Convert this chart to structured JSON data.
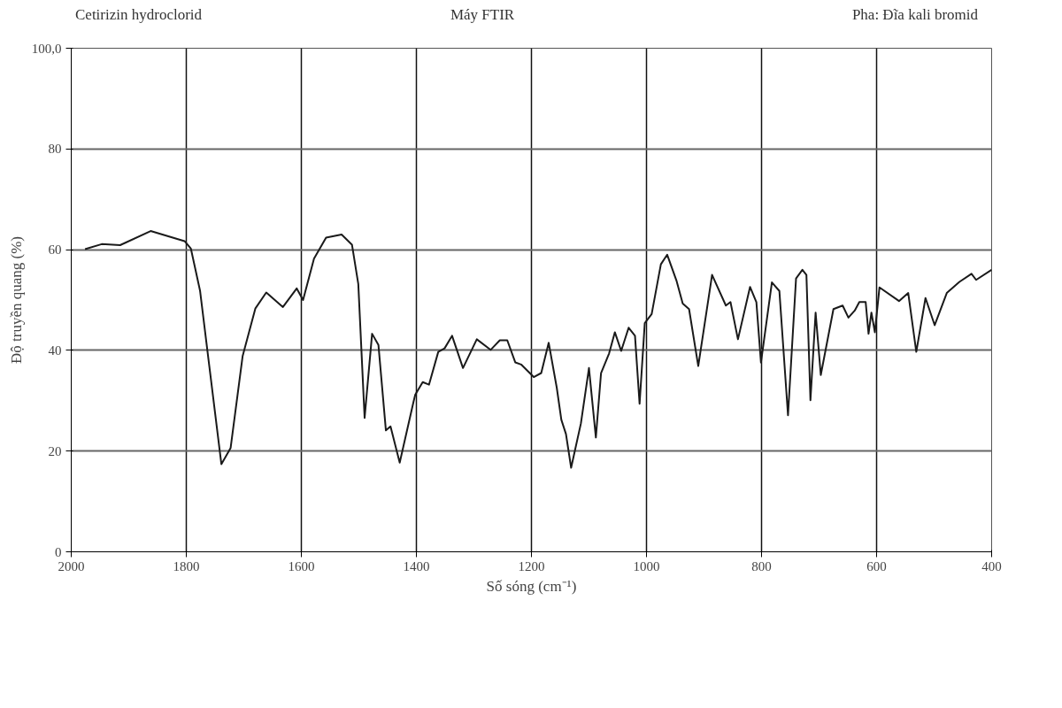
{
  "chart_data": {
    "type": "line",
    "title": "Cetirizin hydroclorid",
    "annotations": [
      "Máy FTIR",
      "Pha: Đĩa kali bromid"
    ],
    "xlabel": "Số sóng (cm⁻¹)",
    "ylabel": "Độ truyền quang (%)",
    "xlim": [
      2000,
      400
    ],
    "xticks": [
      2000,
      1800,
      1600,
      1400,
      1200,
      1000,
      800,
      600,
      400
    ],
    "ylim": [
      0,
      100
    ],
    "yticks": [
      0,
      20,
      40,
      60,
      80,
      {
        "value": 100,
        "label": "100,0"
      }
    ],
    "grid": true,
    "marker": "none",
    "line_style": "solid",
    "series": [
      {
        "color": "#1a1a1a",
        "x": [
          1976,
          1947,
          1915,
          1862,
          1803,
          1792,
          1776,
          1760,
          1739,
          1723,
          1702,
          1680,
          1661,
          1632,
          1608,
          1597,
          1578,
          1557,
          1530,
          1512,
          1501,
          1490,
          1477,
          1466,
          1453,
          1445,
          1429,
          1405,
          1402,
          1389,
          1378,
          1362,
          1351,
          1338,
          1319,
          1295,
          1271,
          1255,
          1242,
          1228,
          1218,
          1196,
          1183,
          1170,
          1156,
          1148,
          1140,
          1131,
          1114,
          1100,
          1088,
          1079,
          1065,
          1055,
          1044,
          1031,
          1020,
          1012,
          1003,
          991,
          975,
          964,
          948,
          937,
          926,
          910,
          886,
          862,
          854,
          841,
          820,
          809,
          801,
          782,
          769,
          754,
          740,
          729,
          722,
          715,
          706,
          697,
          675,
          659,
          649,
          638,
          630,
          619,
          614,
          609,
          603,
          595,
          561,
          545,
          531,
          515,
          499,
          478,
          456,
          435,
          427,
          400
        ],
        "values": [
          60.1,
          61.1,
          60.9,
          63.7,
          61.7,
          60.2,
          51.8,
          36.9,
          17.4,
          20.6,
          38.9,
          48.3,
          51.5,
          48.6,
          52.3,
          50.0,
          58.2,
          62.4,
          63.0,
          61.0,
          53.2,
          26.6,
          43.3,
          41.1,
          24.1,
          24.9,
          17.7,
          29.8,
          31.2,
          33.7,
          33.2,
          39.7,
          40.4,
          42.9,
          36.5,
          42.2,
          40.1,
          42.0,
          42.0,
          37.6,
          37.2,
          34.7,
          35.5,
          41.5,
          32.6,
          26.2,
          23.4,
          16.7,
          25.5,
          36.5,
          22.7,
          35.5,
          39.4,
          43.6,
          39.9,
          44.5,
          42.9,
          29.4,
          45.4,
          47.2,
          57.1,
          59.0,
          53.9,
          49.3,
          48.2,
          36.9,
          55.0,
          48.9,
          49.6,
          42.2,
          52.6,
          49.6,
          37.6,
          53.5,
          51.8,
          27.1,
          54.3,
          56.0,
          55.0,
          30.1,
          47.5,
          35.1,
          48.2,
          48.9,
          46.5,
          47.9,
          49.6,
          49.6,
          43.3,
          47.5,
          43.6,
          52.5,
          49.8,
          51.4,
          39.7,
          50.4,
          45.0,
          51.4,
          53.6,
          55.2,
          54.0,
          56.0
        ]
      }
    ]
  }
}
